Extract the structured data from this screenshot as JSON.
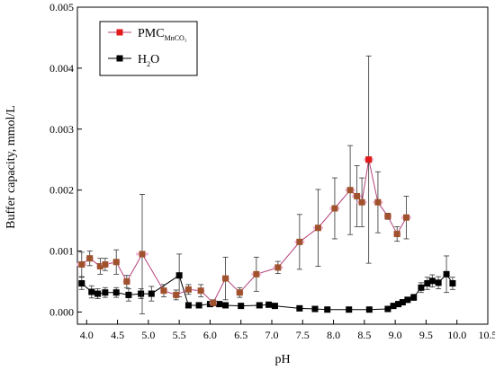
{
  "chart_data": {
    "type": "scatter",
    "xlabel": "pH",
    "ylabel": "Buffer capacity, mmol/L",
    "xlim": [
      3.85,
      10.5
    ],
    "ylim": [
      -0.0002,
      0.005
    ],
    "x_ticks": [
      "4.0",
      "4.5",
      "5.0",
      "5.5",
      "6.0",
      "6.5",
      "7.0",
      "7.5",
      "8.0",
      "8.5",
      "9.0",
      "9.5",
      "10.0",
      "10.5"
    ],
    "y_ticks": [
      "0.000",
      "0.001",
      "0.002",
      "0.003",
      "0.004",
      "0.005"
    ],
    "x_tick_values": [
      4.0,
      4.5,
      5.0,
      5.5,
      6.0,
      6.5,
      7.0,
      7.5,
      8.0,
      8.5,
      9.0,
      9.5,
      10.0,
      10.5
    ],
    "y_tick_values": [
      0.0,
      0.001,
      0.002,
      0.003,
      0.004,
      0.005
    ],
    "grid": false,
    "legend_position": "top-left",
    "series": [
      {
        "name_main": "PMC",
        "name_sub": "MnCO₃",
        "color": "#e31a1c",
        "line_color": "#b5407a",
        "xerr_color": "#f4b6dc",
        "marker": "square",
        "points": [
          {
            "x": 3.92,
            "y": 0.00078,
            "yerr": 0.0002,
            "xerr": 0.08
          },
          {
            "x": 4.05,
            "y": 0.00088,
            "yerr": 0.00012,
            "xerr": 0.06
          },
          {
            "x": 4.22,
            "y": 0.00075,
            "yerr": 0.00013,
            "xerr": 0.06
          },
          {
            "x": 4.3,
            "y": 0.00078,
            "yerr": 0.0001,
            "xerr": 0.06
          },
          {
            "x": 4.48,
            "y": 0.00082,
            "yerr": 0.0002,
            "xerr": 0.06
          },
          {
            "x": 4.65,
            "y": 0.0005,
            "yerr": 0.0001,
            "xerr": 0.06
          },
          {
            "x": 4.9,
            "y": 0.00095,
            "yerr": 0.00098,
            "xerr": 0.1
          },
          {
            "x": 5.25,
            "y": 0.00035,
            "yerr": 0.0001,
            "xerr": 0.06
          },
          {
            "x": 5.45,
            "y": 0.00028,
            "yerr": 8e-05,
            "xerr": 0.06
          },
          {
            "x": 5.65,
            "y": 0.00037,
            "yerr": 8e-05,
            "xerr": 0.06
          },
          {
            "x": 5.85,
            "y": 0.00035,
            "yerr": 0.0001,
            "xerr": 0.06
          },
          {
            "x": 6.05,
            "y": 0.00015,
            "yerr": 5e-05,
            "xerr": 0.06
          },
          {
            "x": 6.25,
            "y": 0.00055,
            "yerr": 0.00035,
            "xerr": 0.06
          },
          {
            "x": 6.48,
            "y": 0.00032,
            "yerr": 8e-05,
            "xerr": 0.06
          },
          {
            "x": 6.75,
            "y": 0.00062,
            "yerr": 0.00028,
            "xerr": 0.08
          },
          {
            "x": 7.1,
            "y": 0.00073,
            "yerr": 0.0001,
            "xerr": 0.08
          },
          {
            "x": 7.45,
            "y": 0.00115,
            "yerr": 0.00045,
            "xerr": 0.08
          },
          {
            "x": 7.75,
            "y": 0.00138,
            "yerr": 0.00063,
            "xerr": 0.08
          },
          {
            "x": 8.02,
            "y": 0.0017,
            "yerr": 0.0005,
            "xerr": 0.08
          },
          {
            "x": 8.27,
            "y": 0.002,
            "yerr": 0.00073,
            "xerr": 0.08
          },
          {
            "x": 8.38,
            "y": 0.0019,
            "yerr": 0.0005,
            "xerr": 0.08
          },
          {
            "x": 8.46,
            "y": 0.0018,
            "yerr": 0.0004,
            "xerr": 0.08
          },
          {
            "x": 8.57,
            "y": 0.0025,
            "yerr": 0.0017,
            "xerr": 0.08
          },
          {
            "x": 8.72,
            "y": 0.0018,
            "yerr": 0.0005,
            "xerr": 0.08
          },
          {
            "x": 8.88,
            "y": 0.00157,
            "yerr": 5e-05,
            "xerr": 0.06
          },
          {
            "x": 9.03,
            "y": 0.00128,
            "yerr": 0.00012,
            "xerr": 0.06
          },
          {
            "x": 9.18,
            "y": 0.00155,
            "yerr": 0.00035,
            "xerr": 0.08
          }
        ]
      },
      {
        "name_main": "H",
        "name_sub": "2",
        "name_suffix": "O",
        "color": "#000000",
        "line_color": "#000000",
        "xerr_color": "#000000",
        "marker": "square",
        "points": [
          {
            "x": 3.92,
            "y": 0.00047,
            "yerr": 0.0001,
            "xerr": 0.05
          },
          {
            "x": 4.08,
            "y": 0.00033,
            "yerr": 0.0001,
            "xerr": 0.05
          },
          {
            "x": 4.18,
            "y": 0.0003,
            "yerr": 8e-05,
            "xerr": 0.05
          },
          {
            "x": 4.3,
            "y": 0.00032,
            "yerr": 8e-05,
            "xerr": 0.05
          },
          {
            "x": 4.48,
            "y": 0.00032,
            "yerr": 8e-05,
            "xerr": 0.05
          },
          {
            "x": 4.68,
            "y": 0.00028,
            "yerr": 0.0001,
            "xerr": 0.05
          },
          {
            "x": 4.88,
            "y": 0.0003,
            "yerr": 8e-05,
            "xerr": 0.05
          },
          {
            "x": 5.05,
            "y": 0.0003,
            "yerr": 0.00012,
            "xerr": 0.05
          },
          {
            "x": 5.5,
            "y": 0.0006,
            "yerr": 0.00035,
            "xerr": 0.05
          },
          {
            "x": 5.65,
            "y": 0.00011,
            "yerr": 3e-05,
            "xerr": 0.05
          },
          {
            "x": 5.82,
            "y": 0.00011,
            "yerr": 3e-05,
            "xerr": 0.05
          },
          {
            "x": 6.0,
            "y": 0.00013,
            "yerr": 3e-05,
            "xerr": 0.05
          },
          {
            "x": 6.15,
            "y": 0.00013,
            "yerr": 3e-05,
            "xerr": 0.05
          },
          {
            "x": 6.25,
            "y": 0.00011,
            "yerr": 3e-05,
            "xerr": 0.05
          },
          {
            "x": 6.5,
            "y": 0.0001,
            "yerr": 3e-05,
            "xerr": 0.05
          },
          {
            "x": 6.8,
            "y": 0.00011,
            "yerr": 3e-05,
            "xerr": 0.05
          },
          {
            "x": 6.95,
            "y": 0.00012,
            "yerr": 3e-05,
            "xerr": 0.05
          },
          {
            "x": 7.05,
            "y": 0.0001,
            "yerr": 3e-05,
            "xerr": 0.05
          },
          {
            "x": 7.45,
            "y": 6e-05,
            "yerr": 2e-05,
            "xerr": 0.05
          },
          {
            "x": 7.7,
            "y": 5e-05,
            "yerr": 2e-05,
            "xerr": 0.05
          },
          {
            "x": 7.9,
            "y": 4e-05,
            "yerr": 2e-05,
            "xerr": 0.05
          },
          {
            "x": 8.25,
            "y": 4e-05,
            "yerr": 2e-05,
            "xerr": 0.05
          },
          {
            "x": 8.58,
            "y": 4e-05,
            "yerr": 2e-05,
            "xerr": 0.05
          },
          {
            "x": 8.88,
            "y": 5e-05,
            "yerr": 2e-05,
            "xerr": 0.05
          },
          {
            "x": 8.97,
            "y": 0.0001,
            "yerr": 3e-05,
            "xerr": 0.04
          },
          {
            "x": 9.05,
            "y": 0.00013,
            "yerr": 3e-05,
            "xerr": 0.04
          },
          {
            "x": 9.12,
            "y": 0.00016,
            "yerr": 3e-05,
            "xerr": 0.04
          },
          {
            "x": 9.2,
            "y": 0.0002,
            "yerr": 4e-05,
            "xerr": 0.04
          },
          {
            "x": 9.3,
            "y": 0.00024,
            "yerr": 5e-05,
            "xerr": 0.04
          },
          {
            "x": 9.42,
            "y": 0.0004,
            "yerr": 8e-05,
            "xerr": 0.04
          },
          {
            "x": 9.52,
            "y": 0.00047,
            "yerr": 0.0001,
            "xerr": 0.04
          },
          {
            "x": 9.6,
            "y": 0.00051,
            "yerr": 0.0001,
            "xerr": 0.04
          },
          {
            "x": 9.7,
            "y": 0.00048,
            "yerr": 0.0001,
            "xerr": 0.04
          },
          {
            "x": 9.83,
            "y": 0.00062,
            "yerr": 0.0003,
            "xerr": 0.04
          },
          {
            "x": 9.93,
            "y": 0.00047,
            "yerr": 0.0001,
            "xerr": 0.04
          }
        ]
      }
    ]
  }
}
